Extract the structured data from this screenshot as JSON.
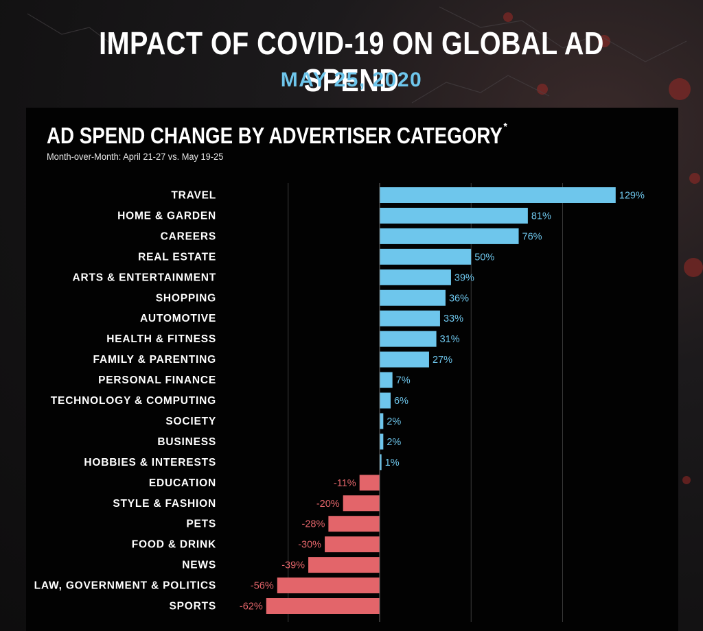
{
  "colors": {
    "background": "#131213",
    "panel": "#020202",
    "positive": "#6ec6ec",
    "negative": "#e3656a",
    "date": "#6ec6ec",
    "gridline": "#3a3a3a",
    "text": "#ffffff"
  },
  "header": {
    "title": "IMPACT OF COVID-19 ON GLOBAL AD SPEND",
    "date": "MAY 25, 2020"
  },
  "chart": {
    "title": "AD SPEND CHANGE BY ADVERTISER CATEGORY",
    "title_footnote_mark": "*",
    "subtitle": "Month-over-Month: April 21-27 vs. May 19-25"
  },
  "chart_data": {
    "type": "bar",
    "orientation": "horizontal",
    "title": "AD SPEND CHANGE BY ADVERTISER CATEGORY",
    "subtitle": "Month-over-Month: April 21-27 vs. May 19-25",
    "value_unit": "%",
    "categories": [
      "TRAVEL",
      "HOME & GARDEN",
      "CAREERS",
      "REAL ESTATE",
      "ARTS & ENTERTAINMENT",
      "SHOPPING",
      "AUTOMOTIVE",
      "HEALTH & FITNESS",
      "FAMILY & PARENTING",
      "PERSONAL FINANCE",
      "TECHNOLOGY & COMPUTING",
      "SOCIETY",
      "BUSINESS",
      "HOBBIES & INTERESTS",
      "EDUCATION",
      "STYLE & FASHION",
      "PETS",
      "FOOD & DRINK",
      "NEWS",
      "LAW, GOVERNMENT & POLITICS",
      "SPORTS"
    ],
    "values": [
      129,
      81,
      76,
      50,
      39,
      36,
      33,
      31,
      27,
      7,
      6,
      2,
      2,
      1,
      -11,
      -20,
      -28,
      -30,
      -39,
      -56,
      -62
    ],
    "labels": [
      "129%",
      "81%",
      "76%",
      "50%",
      "39%",
      "36%",
      "33%",
      "31%",
      "27%",
      "7%",
      "6%",
      "2%",
      "2%",
      "1%",
      "-11%",
      "-20%",
      "-28%",
      "-30%",
      "-39%",
      "-56%",
      "-62%"
    ],
    "xlim": [
      -62,
      129
    ],
    "gridlines_at": [
      -50,
      0,
      50,
      100
    ],
    "grid": true,
    "legend": "none"
  }
}
